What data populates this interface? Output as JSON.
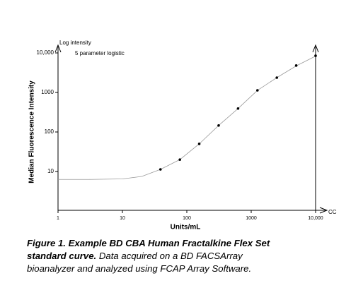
{
  "chart_data": {
    "type": "scatter",
    "x_label": "Units/mL",
    "y_label": "Median Fluorescence Intensity",
    "annotations": [
      "Log intensity",
      "5 parameter logistic",
      "CC"
    ],
    "xscale": "log",
    "yscale": "log",
    "xlim": [
      1,
      10000
    ],
    "ylim": [
      1,
      10000
    ],
    "xticks": [
      1,
      10,
      100,
      {
        "value": 1000,
        "label": "1000"
      },
      {
        "value": 10000,
        "label": "10,000"
      }
    ],
    "yticks": [
      10,
      100,
      1000,
      {
        "value": 10000,
        "label": "10,000"
      }
    ],
    "points": {
      "color": "#000000",
      "x": [
        39,
        78,
        156,
        312,
        625,
        1250,
        2500,
        5000,
        10000
      ],
      "values": [
        11.3,
        20,
        50,
        146,
        392,
        1130,
        2370,
        4800,
        8500
      ]
    },
    "curve": {
      "color": "#999999",
      "x": [
        1,
        3,
        10,
        20,
        39,
        78,
        156,
        312,
        625,
        1250,
        2500,
        5000,
        10000
      ],
      "values": [
        6.3,
        6.3,
        6.5,
        7.5,
        11.3,
        20,
        50,
        146,
        392,
        1130,
        2370,
        4700,
        8300
      ]
    }
  },
  "caption": {
    "bold": "Figure 1. Example BD CBA Human Fractalkine Flex Set standard curve.",
    "text": "Data acquired on a BD FACSArray bioanalyzer and analyzed using FCAP Array Software."
  }
}
